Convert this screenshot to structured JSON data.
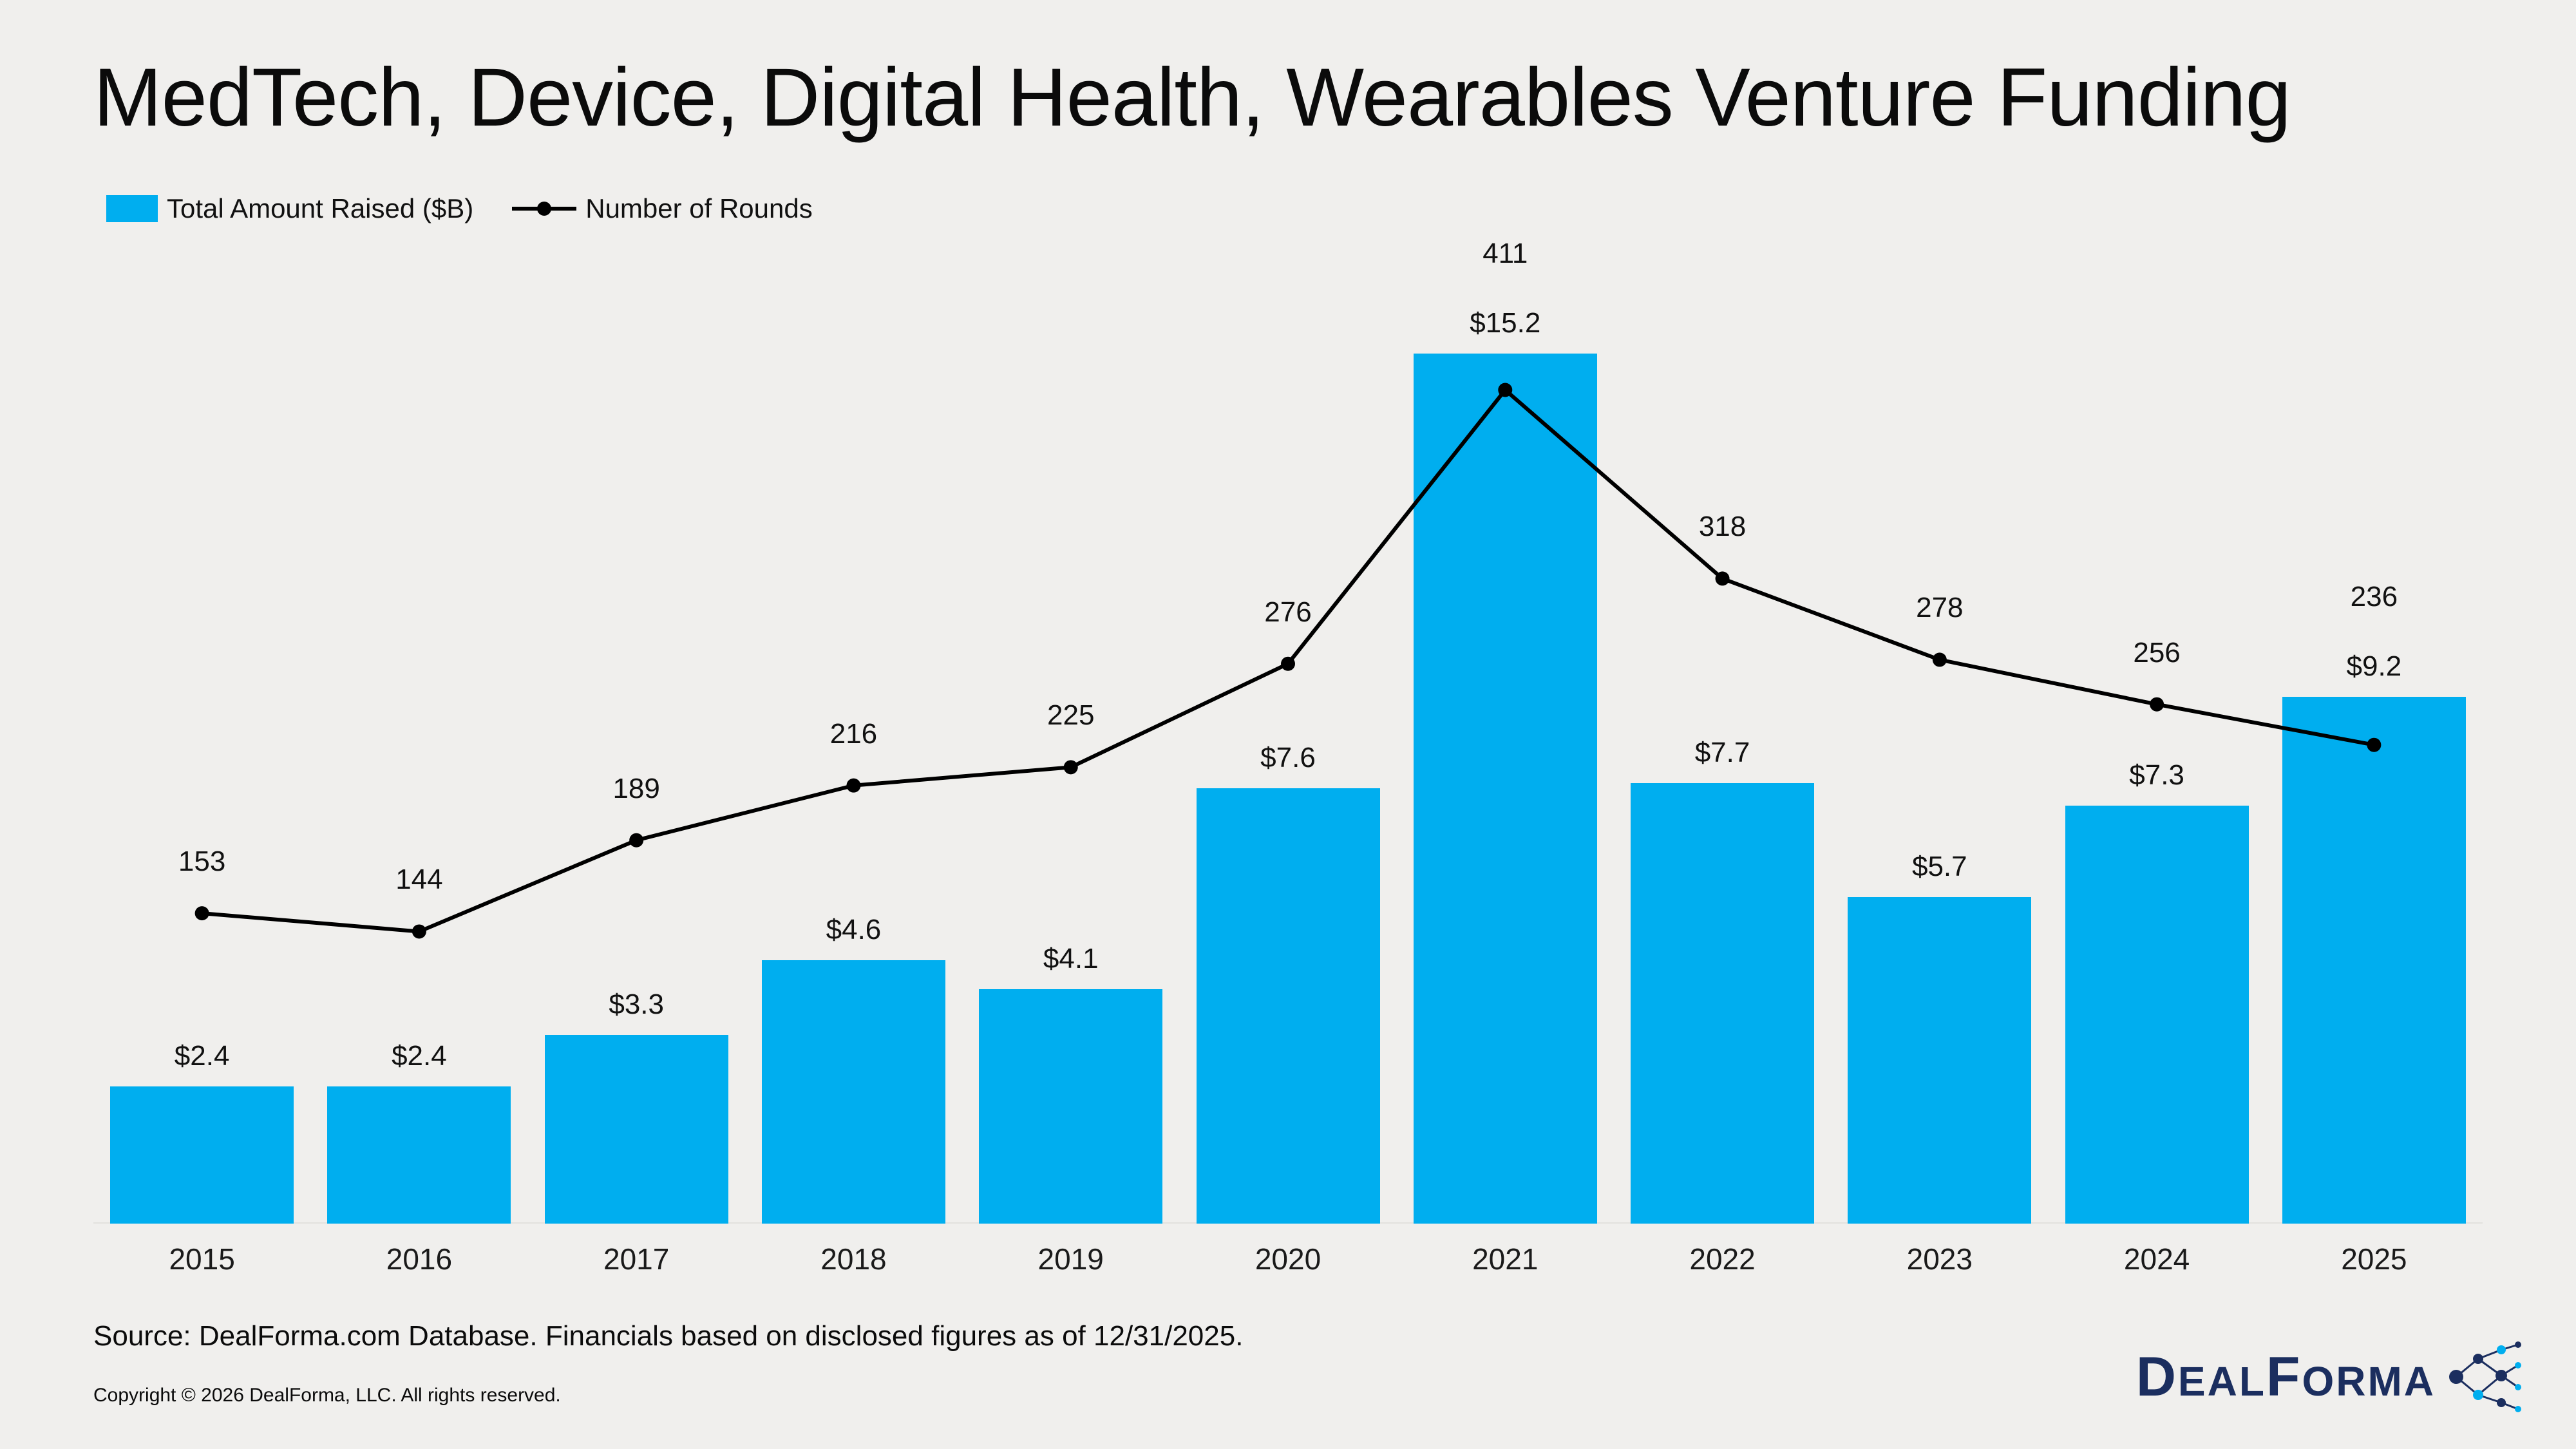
{
  "title": "MedTech, Device, Digital Health, Wearables Venture Funding",
  "legend": {
    "bar_label": "Total Amount Raised ($B)",
    "line_label": "Number of Rounds"
  },
  "chart_data": {
    "type": "bar",
    "title": "MedTech, Device, Digital Health, Wearables Venture Funding",
    "categories": [
      "2015",
      "2016",
      "2017",
      "2018",
      "2019",
      "2020",
      "2021",
      "2022",
      "2023",
      "2024",
      "2025"
    ],
    "series": [
      {
        "name": "Total Amount Raised ($B)",
        "type": "bar",
        "values": [
          2.4,
          2.4,
          3.3,
          4.6,
          4.1,
          7.6,
          15.2,
          7.7,
          5.7,
          7.3,
          9.2
        ],
        "labels": [
          "$2.4",
          "$2.4",
          "$3.3",
          "$4.6",
          "$4.1",
          "$7.6",
          "$15.2",
          "$7.7",
          "$5.7",
          "$7.3",
          "$9.2"
        ],
        "color": "#00AEEF"
      },
      {
        "name": "Number of Rounds",
        "type": "line",
        "values": [
          153,
          144,
          189,
          216,
          225,
          276,
          411,
          318,
          278,
          256,
          236
        ],
        "labels": [
          "153",
          "144",
          "189",
          "216",
          "225",
          "276",
          "411",
          "318",
          "278",
          "256",
          "236"
        ],
        "color": "#000000"
      }
    ],
    "ylim_bar": [
      0,
      18
    ],
    "ylim_line": [
      0,
      508
    ],
    "grid": false,
    "legend_position": "top-left",
    "data_labels": true
  },
  "footer": {
    "source": "Source: DealForma.com Database. Financials based on disclosed figures as of 12/31/2025.",
    "copyright": "Copyright © 2026 DealForma, LLC. All rights reserved."
  },
  "logo": {
    "part1": "D",
    "part2": "EAL",
    "part3": "F",
    "part4": "ORMA"
  },
  "colors": {
    "bar": "#00AEEF",
    "line": "#000000",
    "background": "#f0efed",
    "logo_navy": "#1b2e5f",
    "logo_cyan": "#00AEEF"
  }
}
